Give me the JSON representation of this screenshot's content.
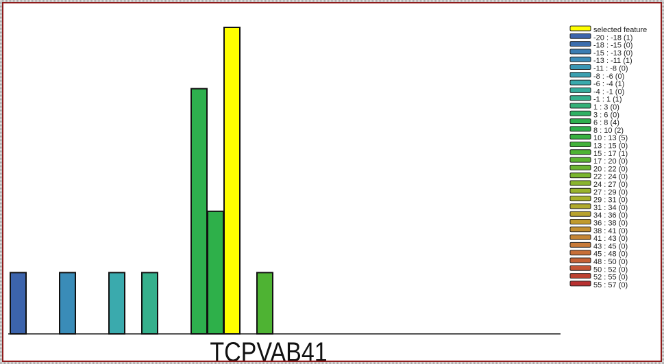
{
  "chart_data": {
    "type": "bar",
    "xlabel": "TCPVAB41",
    "ylim": [
      0,
      5
    ],
    "grid": false,
    "legend_placement": "right",
    "selected_label": "selected feature",
    "selected_color": "#ffff00",
    "bins": [
      {
        "label": "-20 : -18 (1)",
        "count": 1,
        "color": "#3c64ac"
      },
      {
        "label": "-18 : -15 (0)",
        "count": 0,
        "color": "#3b6dad"
      },
      {
        "label": "-15 : -13 (0)",
        "count": 0,
        "color": "#3a7db3"
      },
      {
        "label": "-13 : -11 (1)",
        "count": 1,
        "color": "#3a8cb8"
      },
      {
        "label": "-11 : -8 (0)",
        "count": 0,
        "color": "#3a96b4"
      },
      {
        "label": "-8 : -6 (0)",
        "count": 0,
        "color": "#3aa0b1"
      },
      {
        "label": "-6 : -4 (1)",
        "count": 1,
        "color": "#3aaaad"
      },
      {
        "label": "-4 : -1 (0)",
        "count": 0,
        "color": "#37ad9d"
      },
      {
        "label": "-1 : 1 (1)",
        "count": 1,
        "color": "#35b08c"
      },
      {
        "label": "1 : 3 (0)",
        "count": 0,
        "color": "#33b077"
      },
      {
        "label": "3 : 6 (0)",
        "count": 0,
        "color": "#30b063"
      },
      {
        "label": "6 : 8 (4)",
        "count": 4,
        "color": "#2eb04e"
      },
      {
        "label": "8 : 10 (2)",
        "count": 2,
        "color": "#2eb04a"
      },
      {
        "label": "10 : 13 (5)",
        "count": 5,
        "color": "#39b142",
        "selected": true
      },
      {
        "label": "13 : 15 (0)",
        "count": 0,
        "color": "#43b23b"
      },
      {
        "label": "15 : 17 (1)",
        "count": 1,
        "color": "#4eb333"
      },
      {
        "label": "17 : 20 (0)",
        "count": 0,
        "color": "#5db431"
      },
      {
        "label": "20 : 22 (0)",
        "count": 0,
        "color": "#6bb430"
      },
      {
        "label": "22 : 24 (0)",
        "count": 0,
        "color": "#7ab52e"
      },
      {
        "label": "24 : 27 (0)",
        "count": 0,
        "color": "#89b42d"
      },
      {
        "label": "27 : 29 (0)",
        "count": 0,
        "color": "#99b32d"
      },
      {
        "label": "29 : 31 (0)",
        "count": 0,
        "color": "#a8b22c"
      },
      {
        "label": "31 : 34 (0)",
        "count": 0,
        "color": "#b0aa2d"
      },
      {
        "label": "34 : 36 (0)",
        "count": 0,
        "color": "#b8a22d"
      },
      {
        "label": "36 : 38 (0)",
        "count": 0,
        "color": "#c09a2e"
      },
      {
        "label": "38 : 41 (0)",
        "count": 0,
        "color": "#c38f31"
      },
      {
        "label": "41 : 43 (0)",
        "count": 0,
        "color": "#c58535"
      },
      {
        "label": "43 : 45 (0)",
        "count": 0,
        "color": "#c87a38"
      },
      {
        "label": "45 : 48 (0)",
        "count": 0,
        "color": "#c76e37"
      },
      {
        "label": "48 : 50 (0)",
        "count": 0,
        "color": "#c56135"
      },
      {
        "label": "50 : 52 (0)",
        "count": 0,
        "color": "#c45534"
      },
      {
        "label": "52 : 55 (0)",
        "count": 0,
        "color": "#be4232"
      },
      {
        "label": "55 : 57 (0)",
        "count": 0,
        "color": "#b83030"
      }
    ]
  }
}
